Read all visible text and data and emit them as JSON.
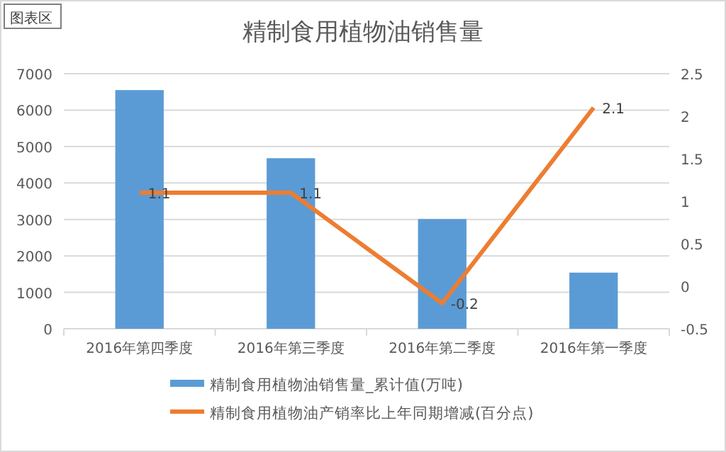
{
  "chart_data": {
    "type": "bar",
    "title": "精制食用植物油销售量",
    "categories": [
      "2016年第四季度",
      "2016年第三季度",
      "2016年第二季度",
      "2016年第一季度"
    ],
    "series": [
      {
        "name": "精制食用植物油销售量_累计值(万吨)",
        "color": "#5b9bd5",
        "values": [
          6550,
          4680,
          3010,
          1540
        ]
      },
      {
        "name": "精制食用植物油产销率比上年同期增减(百分点)",
        "type": "line",
        "axis": "y2",
        "color": "#ed7d31",
        "values": [
          1.1,
          1.1,
          -0.2,
          2.1
        ],
        "value_labels": [
          "1.1",
          "1.1",
          "-0.2",
          "2.1"
        ]
      }
    ],
    "ylim": [
      0,
      7000
    ],
    "yticks": [
      0,
      1000,
      2000,
      3000,
      4000,
      5000,
      6000,
      7000
    ],
    "y2lim": [
      -0.5,
      2.5
    ],
    "y2ticks": [
      -0.5,
      0,
      0.5,
      1,
      1.5,
      2,
      2.5
    ],
    "grid": "y",
    "legend": "bottom",
    "marker": "none",
    "annotations": [
      "图表区"
    ]
  }
}
